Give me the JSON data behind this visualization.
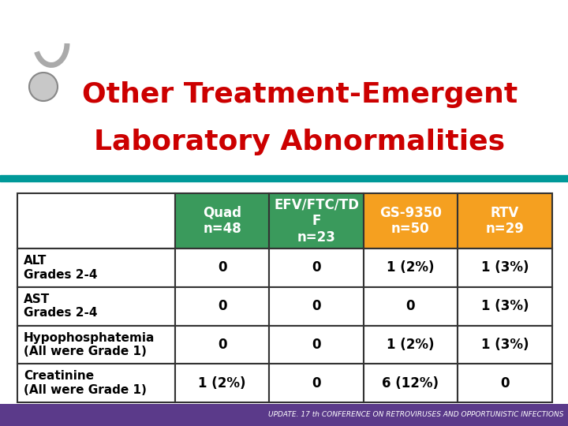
{
  "title_line1": "Other Treatment-Emergent",
  "title_line2": "Laboratory Abnormalities",
  "title_color": "#CC0000",
  "title_fontsize": 26,
  "teal_bar_color": "#009999",
  "header_col1": "Quad\nn=48",
  "header_col2": "EFV/FTC/TD\nF\nn=23",
  "header_col3": "GS-9350\nn=50",
  "header_col4": "RTV\nn=29",
  "header_bg_col1": "#3A9A5C",
  "header_bg_col2": "#3A9A5C",
  "header_bg_col3": "#F5A020",
  "header_bg_col4": "#F5A020",
  "header_text_color": "#FFFFFF",
  "rows": [
    {
      "label": "ALT\nGrades 2-4",
      "col1": "0",
      "col2": "0",
      "col3": "1 (2%)",
      "col4": "1 (3%)"
    },
    {
      "label": "AST\nGrades 2-4",
      "col1": "0",
      "col2": "0",
      "col3": "0",
      "col4": "1 (3%)"
    },
    {
      "label": "Hypophosphatemia\n(All were Grade 1)",
      "col1": "0",
      "col2": "0",
      "col3": "1 (2%)",
      "col4": "1 (3%)"
    },
    {
      "label": "Creatinine\n(All were Grade 1)",
      "col1": "1 (2%)",
      "col2": "0",
      "col3": "6 (12%)",
      "col4": "0"
    }
  ],
  "footer_text": "UPDATE. 17 th CONFERENCE ON RETROVIRUSES AND OPPORTUNISTIC INFECTIONS",
  "footer_bg": "#5B3A8A",
  "footer_text_color": "#FFFFFF",
  "bg_color": "#FFFFFF",
  "table_border_color": "#333333",
  "row_label_fontsize": 11,
  "cell_fontsize": 12,
  "header_fontsize": 12
}
